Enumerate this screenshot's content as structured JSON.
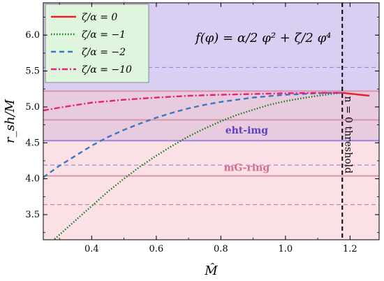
{
  "chart_data": {
    "type": "line",
    "xlabel": "M̂",
    "ylabel": "r_sh/M",
    "xlim": [
      0.25,
      1.29
    ],
    "ylim": [
      3.15,
      6.45
    ],
    "x_ticks": [
      "0.4",
      "0.6",
      "0.8",
      "1.0",
      "1.2"
    ],
    "y_ticks": [
      "3.5",
      "4.0",
      "4.5",
      "5.0",
      "5.5",
      "6.0"
    ],
    "grid": false,
    "legend_position": "top-left",
    "annotation_formula": "f(φ) = α/2 φ² + ζ/2 φ⁴",
    "threshold": {
      "x": 1.176,
      "label": "n = 0   threshold",
      "color": "#000000"
    },
    "bands": [
      {
        "name": "eht-img",
        "y_range": [
          4.53,
          6.45
        ],
        "center": 5.55,
        "color": "#b8a8e8",
        "line_color": "#9a86dd",
        "label": "eht-img",
        "label_color": "#5b3fc7",
        "label_x": 0.88,
        "label_y": 4.63
      },
      {
        "name": "mG-ring",
        "y_range": [
          3.15,
          5.22
        ],
        "center": 4.19,
        "color": "#f7c9cf",
        "line_color": "#d895a8",
        "label": "mG-ring",
        "label_color": "#d86f86",
        "label_x": 0.88,
        "label_y": 4.11
      }
    ],
    "overlay_lines": [
      {
        "y": 5.22,
        "style": "solid",
        "color": "#d895a8"
      },
      {
        "y": 4.82,
        "style": "solid",
        "color": "#d895a8"
      },
      {
        "y": 5.55,
        "style": "dashed",
        "color": "#9a86dd"
      },
      {
        "y": 4.53,
        "style": "solid",
        "color": "#9a86dd"
      },
      {
        "y": 4.19,
        "style": "dashed",
        "color": "#9a86dd"
      },
      {
        "y": 4.04,
        "style": "solid",
        "color": "#d895a8"
      },
      {
        "y": 3.64,
        "style": "dashed",
        "color": "#c08090"
      }
    ],
    "series": [
      {
        "name": "ζ/α = 0",
        "color": "#e8202a",
        "dash": "",
        "x": [
          1.176,
          1.2,
          1.23,
          1.26
        ],
        "y": [
          5.196,
          5.185,
          5.17,
          5.155
        ]
      },
      {
        "name": "ζ/α = −1",
        "color": "#117a11",
        "dash": "1.5,2.5",
        "x": [
          0.285,
          0.32,
          0.35,
          0.4,
          0.45,
          0.5,
          0.55,
          0.6,
          0.65,
          0.7,
          0.75,
          0.8,
          0.85,
          0.9,
          0.95,
          1.0,
          1.05,
          1.1,
          1.15,
          1.176
        ],
        "y": [
          3.16,
          3.3,
          3.42,
          3.62,
          3.82,
          4.0,
          4.17,
          4.32,
          4.46,
          4.59,
          4.7,
          4.8,
          4.89,
          4.96,
          5.03,
          5.08,
          5.12,
          5.155,
          5.185,
          5.196
        ]
      },
      {
        "name": "ζ/α = −2",
        "color": "#3a78bf",
        "dash": "7,5",
        "x": [
          0.25,
          0.3,
          0.35,
          0.4,
          0.45,
          0.5,
          0.55,
          0.6,
          0.65,
          0.7,
          0.75,
          0.8,
          0.85,
          0.9,
          0.95,
          1.0,
          1.05,
          1.1,
          1.15,
          1.176
        ],
        "y": [
          4.02,
          4.18,
          4.32,
          4.46,
          4.58,
          4.68,
          4.77,
          4.85,
          4.92,
          4.98,
          5.03,
          5.07,
          5.1,
          5.13,
          5.15,
          5.17,
          5.18,
          5.19,
          5.195,
          5.196
        ]
      },
      {
        "name": "ζ/α = −10",
        "color": "#e8207a",
        "dash": "8,3,2,3",
        "x": [
          0.25,
          0.3,
          0.4,
          0.5,
          0.6,
          0.7,
          0.8,
          0.9,
          1.0,
          1.1,
          1.176
        ],
        "y": [
          4.95,
          4.99,
          5.06,
          5.1,
          5.13,
          5.155,
          5.17,
          5.18,
          5.19,
          5.195,
          5.196
        ]
      }
    ]
  }
}
